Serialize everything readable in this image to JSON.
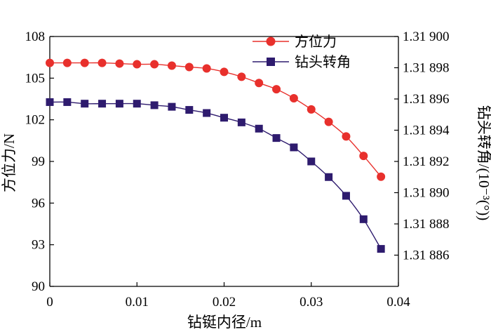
{
  "chart_data": {
    "type": "line",
    "x": [
      0,
      0.002,
      0.004,
      0.006,
      0.008,
      0.01,
      0.012,
      0.014,
      0.016,
      0.018,
      0.02,
      0.022,
      0.024,
      0.026,
      0.028,
      0.03,
      0.032,
      0.034,
      0.036,
      0.038
    ],
    "xlabel": "钻铤内径/m",
    "xlim": [
      0,
      0.04
    ],
    "xticks": [
      0,
      0.01,
      0.02,
      0.03,
      0.04
    ],
    "xtick_labels": [
      "0",
      "0.01",
      "0.02",
      "0.03",
      "0.04"
    ],
    "left_axis": {
      "label": "方位力/N",
      "lim": [
        90,
        108
      ],
      "ticks": [
        90,
        93,
        96,
        99,
        102,
        105,
        108
      ],
      "tick_labels": [
        "90",
        "93",
        "96",
        "99",
        "102",
        "105",
        "108"
      ]
    },
    "right_axis": {
      "label": "钻头转角/(10⁻³(°))",
      "lim": [
        1.31884,
        1.319
      ],
      "ticks": [
        1.31886,
        1.31888,
        1.3189,
        1.31892,
        1.31894,
        1.31896,
        1.31898,
        1.319
      ],
      "tick_labels": [
        "1.31 886",
        "1.31 888",
        "1.31 890",
        "1.31 892",
        "1.31 894",
        "1.31 896",
        "1.31 898",
        "1.31 900"
      ]
    },
    "series": [
      {
        "name": "方位力",
        "axis": "left",
        "color": "#e8302c",
        "marker": "circle",
        "values": [
          106.1,
          106.1,
          106.1,
          106.1,
          106.05,
          106.0,
          106.0,
          105.9,
          105.8,
          105.7,
          105.45,
          105.1,
          104.65,
          104.2,
          103.55,
          102.75,
          101.85,
          100.8,
          99.4,
          97.9
        ]
      },
      {
        "name": "钻头转角",
        "axis": "right",
        "color": "#2e1b6e",
        "marker": "square",
        "values": [
          1.318958,
          1.318958,
          1.318957,
          1.318957,
          1.318957,
          1.318957,
          1.318956,
          1.318955,
          1.318953,
          1.318951,
          1.318948,
          1.318945,
          1.318941,
          1.318935,
          1.318929,
          1.31892,
          1.31891,
          1.318898,
          1.318883,
          1.318864
        ]
      }
    ],
    "legend_position": "top-right"
  }
}
